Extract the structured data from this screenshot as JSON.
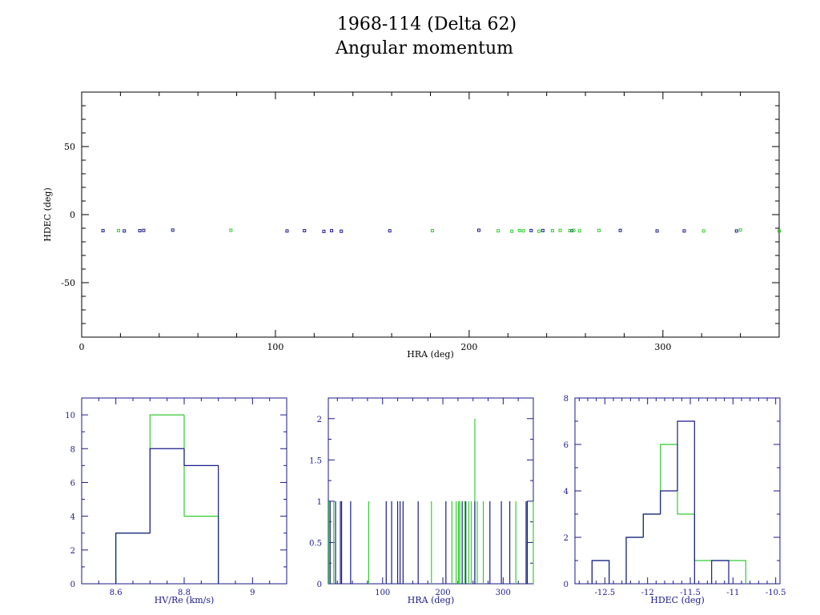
{
  "title_line1": "1968-114 (Delta 62)",
  "title_line2": "Angular momentum",
  "colors": {
    "blue": "#1a1a8c",
    "green": "#33cc33",
    "axis": "#000000"
  },
  "chart_data": [
    {
      "type": "scatter",
      "xlabel": "HRA (deg)",
      "ylabel": "HDEC (deg)",
      "xlim": [
        0,
        360
      ],
      "ylim": [
        -90,
        90
      ],
      "xticks": [
        0,
        100,
        200,
        300
      ],
      "yticks": [
        50,
        0,
        -50
      ],
      "series": [
        {
          "color": "blue",
          "points": [
            [
              11,
              -11.8
            ],
            [
              22,
              -12
            ],
            [
              30,
              -11.8
            ],
            [
              32,
              -11.6
            ],
            [
              47,
              -11.4
            ],
            [
              106,
              -12
            ],
            [
              115,
              -11.8
            ],
            [
              125,
              -12.3
            ],
            [
              129,
              -11.8
            ],
            [
              134,
              -12.2
            ],
            [
              159,
              -11.9
            ],
            [
              205,
              -11.5
            ],
            [
              232,
              -11.7
            ],
            [
              238,
              -11.7
            ],
            [
              253,
              -11.8
            ],
            [
              278,
              -11.6
            ],
            [
              297,
              -12
            ],
            [
              311,
              -12
            ],
            [
              338,
              -12
            ]
          ]
        },
        {
          "color": "green",
          "points": [
            [
              19,
              -11.7
            ],
            [
              77,
              -11.5
            ],
            [
              181,
              -11.8
            ],
            [
              215,
              -11.9
            ],
            [
              222,
              -12.2
            ],
            [
              226,
              -11.7
            ],
            [
              228,
              -11.9
            ],
            [
              236,
              -12.2
            ],
            [
              243,
              -11.8
            ],
            [
              247,
              -11.6
            ],
            [
              252,
              -11.8
            ],
            [
              254,
              -11.6
            ],
            [
              257,
              -11.9
            ],
            [
              267,
              -11.6
            ],
            [
              321,
              -12
            ],
            [
              340,
              -11.3
            ],
            [
              360,
              -12
            ]
          ]
        }
      ]
    },
    {
      "type": "bar",
      "xlabel": "HV/Re (km/s)",
      "xlim": [
        8.5,
        9.1
      ],
      "ylim": [
        0,
        11
      ],
      "xticks": [
        8.6,
        8.8,
        9
      ],
      "yticks": [
        0,
        2,
        4,
        6,
        8,
        10
      ],
      "series": [
        {
          "color": "green",
          "bins": [
            [
              8.6,
              8.7,
              3
            ],
            [
              8.7,
              8.8,
              10
            ],
            [
              8.8,
              8.9,
              4
            ]
          ]
        },
        {
          "color": "blue",
          "bins": [
            [
              8.6,
              8.7,
              3
            ],
            [
              8.7,
              8.8,
              8
            ],
            [
              8.8,
              8.9,
              7
            ]
          ]
        }
      ]
    },
    {
      "type": "bar",
      "xlabel": "HRA (deg)",
      "xlim": [
        10,
        350
      ],
      "ylim": [
        0,
        2.25
      ],
      "xticks": [
        100,
        200,
        300
      ],
      "yticks": [
        0,
        0.5,
        1,
        1.5,
        2
      ],
      "series": [
        {
          "color": "green",
          "spikes": [
            [
              11,
              1
            ],
            [
              19,
              1
            ],
            [
              77,
              1
            ],
            [
              181,
              1
            ],
            [
              215,
              1
            ],
            [
              222,
              1
            ],
            [
              226,
              1
            ],
            [
              228,
              1
            ],
            [
              236,
              1
            ],
            [
              243,
              1
            ],
            [
              247,
              1
            ],
            [
              253,
              2
            ],
            [
              257,
              1
            ],
            [
              267,
              1
            ],
            [
              321,
              1
            ],
            [
              340,
              1
            ],
            [
              350,
              1
            ]
          ]
        },
        {
          "color": "blue",
          "spikes": [
            [
              13,
              1
            ],
            [
              22,
              1
            ],
            [
              30,
              1
            ],
            [
              32,
              1
            ],
            [
              47,
              1
            ],
            [
              106,
              1
            ],
            [
              115,
              1
            ],
            [
              125,
              1
            ],
            [
              129,
              1
            ],
            [
              134,
              1
            ],
            [
              159,
              1
            ],
            [
              205,
              1
            ],
            [
              232,
              1
            ],
            [
              238,
              1
            ],
            [
              253,
              1
            ],
            [
              278,
              1
            ],
            [
              297,
              1
            ],
            [
              311,
              1
            ],
            [
              338,
              1
            ],
            [
              340,
              1
            ]
          ]
        }
      ]
    },
    {
      "type": "bar",
      "xlabel": "HDEC (deg)",
      "xlim": [
        -12.85,
        -10.45
      ],
      "ylim": [
        0,
        8
      ],
      "xticks": [
        -12.5,
        -12,
        -11.5,
        -11,
        -10.5
      ],
      "yticks": [
        0,
        2,
        4,
        6,
        8
      ],
      "series": [
        {
          "color": "green",
          "bins": [
            [
              -12.65,
              -12.45,
              1
            ],
            [
              -12.25,
              -12.05,
              2
            ],
            [
              -12.05,
              -11.85,
              3
            ],
            [
              -11.85,
              -11.65,
              6
            ],
            [
              -11.65,
              -11.45,
              3
            ],
            [
              -11.45,
              -11.25,
              1
            ],
            [
              -11.25,
              -11.05,
              1
            ],
            [
              -11.05,
              -10.85,
              1
            ]
          ]
        },
        {
          "color": "blue",
          "bins": [
            [
              -12.65,
              -12.45,
              1
            ],
            [
              -12.25,
              -12.05,
              2
            ],
            [
              -12.05,
              -11.85,
              3
            ],
            [
              -11.85,
              -11.65,
              4
            ],
            [
              -11.65,
              -11.45,
              7
            ],
            [
              -11.25,
              -11.05,
              1
            ]
          ]
        }
      ]
    }
  ]
}
